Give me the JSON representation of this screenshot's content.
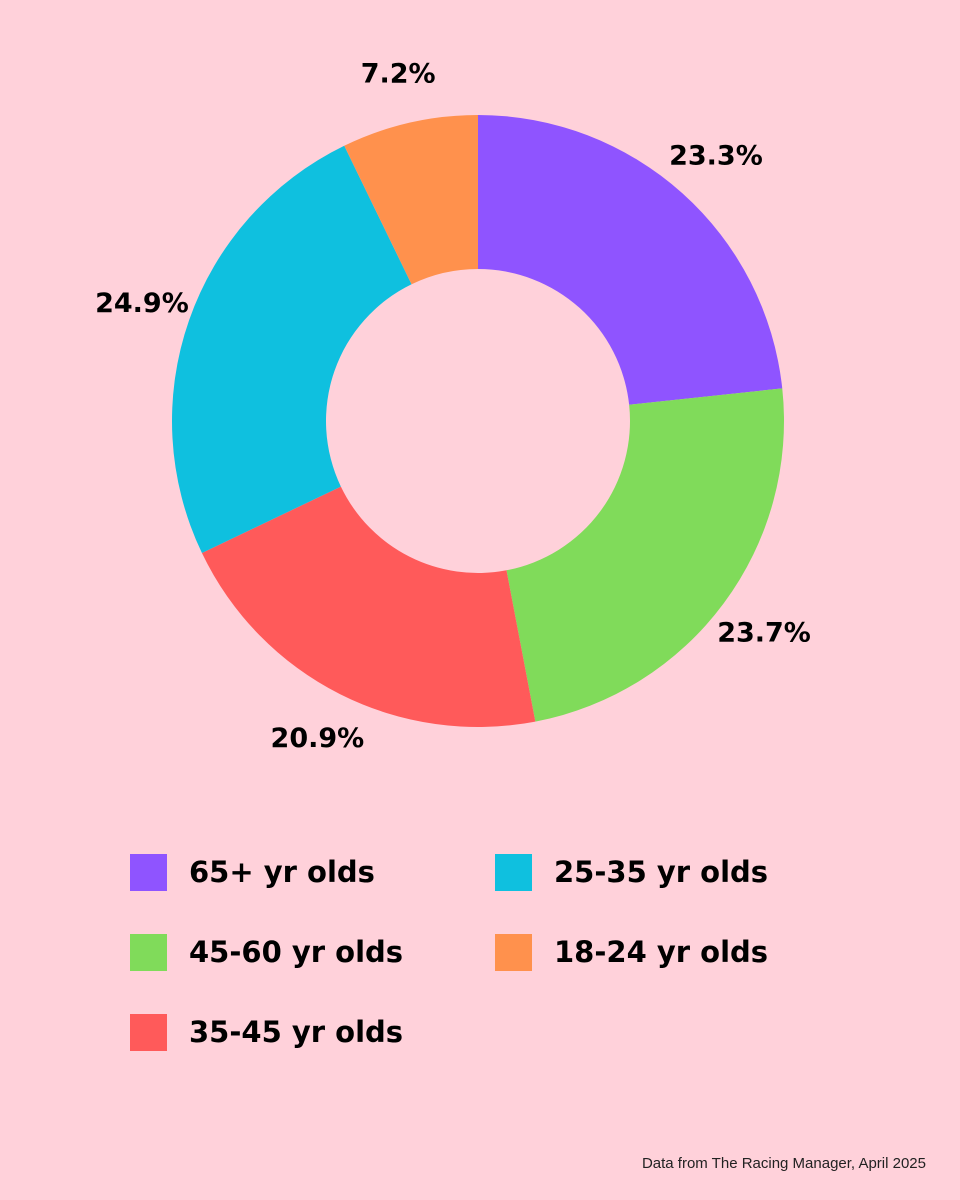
{
  "chart_data": {
    "type": "pie",
    "variant": "donut",
    "title": "",
    "start_angle": "top (12 o'clock), clockwise",
    "legend_position": "bottom",
    "slices": [
      {
        "label": "65+ yr olds",
        "value": 23.3,
        "value_label": "23.3%",
        "color": "#8f54ff"
      },
      {
        "label": "45-60 yr olds",
        "value": 23.7,
        "value_label": "23.7%",
        "color": "#80db5a"
      },
      {
        "label": "35-45 yr olds",
        "value": 20.9,
        "value_label": "20.9%",
        "color": "#ff5a5a"
      },
      {
        "label": "25-35 yr olds",
        "value": 24.9,
        "value_label": "24.9%",
        "color": "#0fc0df"
      },
      {
        "label": "18-24 yr olds",
        "value": 7.2,
        "value_label": "7.2%",
        "color": "#ff914d"
      }
    ]
  },
  "legend": {
    "order": [
      0,
      3,
      1,
      4,
      2
    ]
  },
  "footer": {
    "source_note": "Data from The Racing Manager, April 2025"
  }
}
